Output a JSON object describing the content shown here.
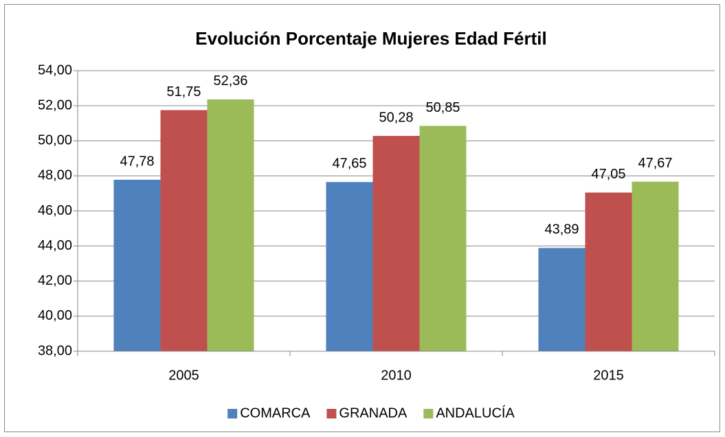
{
  "chart_data": {
    "type": "bar",
    "title": "Evolución Porcentaje Mujeres Edad Fértil",
    "categories": [
      "2005",
      "2010",
      "2015"
    ],
    "series": [
      {
        "name": "COMARCA",
        "color": "#4f81bd",
        "values": [
          47.78,
          47.65,
          43.89
        ],
        "value_labels": [
          "47,78",
          "47,65",
          "43,89"
        ]
      },
      {
        "name": "GRANADA",
        "color": "#c0504d",
        "values": [
          51.75,
          50.28,
          47.05
        ],
        "value_labels": [
          "51,75",
          "50,28",
          "47,05"
        ]
      },
      {
        "name": "ANDALUCÍA",
        "color": "#9bbb59",
        "values": [
          52.36,
          50.85,
          47.67
        ],
        "value_labels": [
          "52,36",
          "50,85",
          "47,67"
        ]
      }
    ],
    "ylim": [
      38,
      54
    ],
    "yticks": [
      {
        "value": 38,
        "label": "38,00"
      },
      {
        "value": 40,
        "label": "40,00"
      },
      {
        "value": 42,
        "label": "42,00"
      },
      {
        "value": 44,
        "label": "44,00"
      },
      {
        "value": 46,
        "label": "46,00"
      },
      {
        "value": 48,
        "label": "48,00"
      },
      {
        "value": 50,
        "label": "50,00"
      },
      {
        "value": 52,
        "label": "52,00"
      },
      {
        "value": 54,
        "label": "54,00"
      }
    ],
    "grid": true,
    "legend": "bottom"
  }
}
